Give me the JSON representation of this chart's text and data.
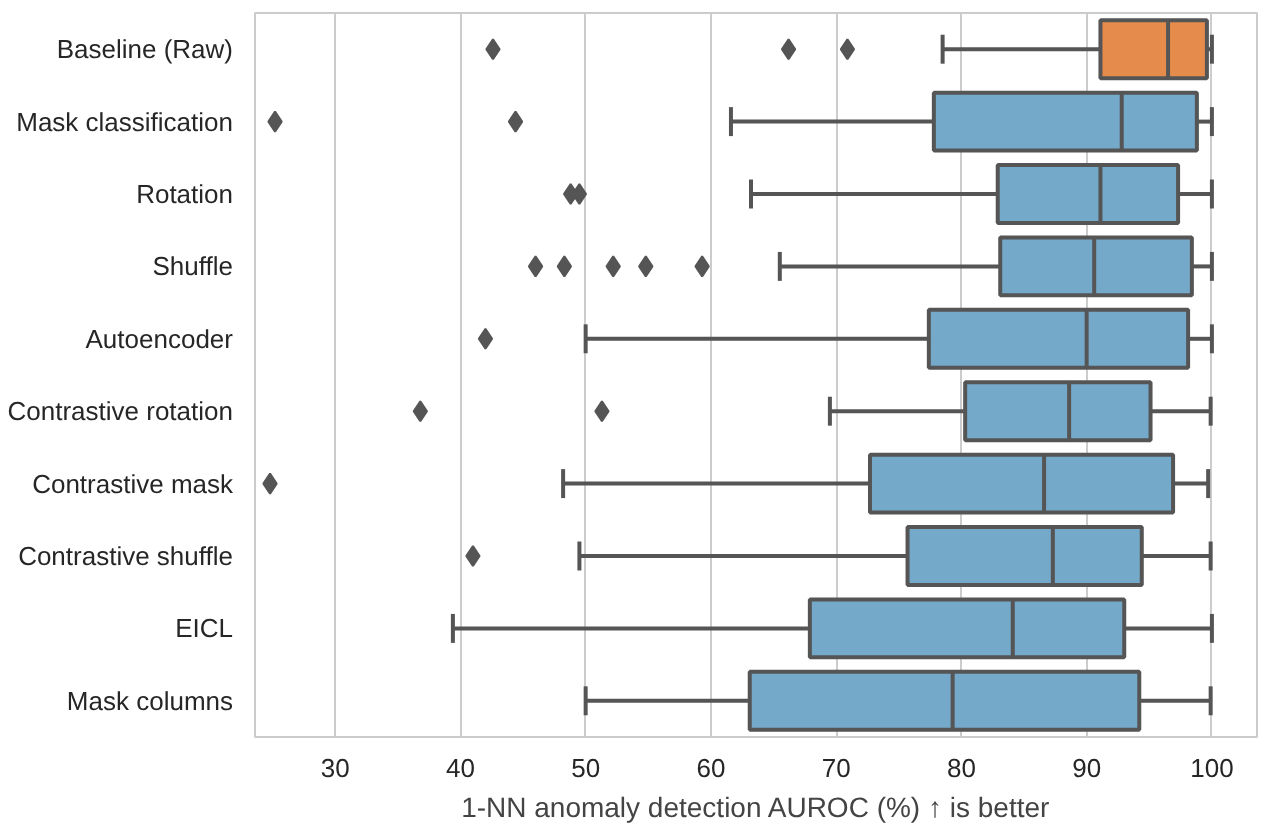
{
  "chart_data": {
    "type": "box",
    "orientation": "horizontal",
    "xlabel": "1-NN anomaly detection AUROC (%) ↑ is better",
    "categories": [
      "Baseline (Raw)",
      "Mask classification",
      "Rotation",
      "Shuffle",
      "Autoencoder",
      "Contrastive rotation",
      "Contrastive mask",
      "Contrastive shuffle",
      "EICL",
      "Mask columns"
    ],
    "colors": [
      "#e58c4c",
      "#75a9c9",
      "#75a9c9",
      "#75a9c9",
      "#75a9c9",
      "#75a9c9",
      "#75a9c9",
      "#75a9c9",
      "#75a9c9",
      "#75a9c9"
    ],
    "boxes": [
      {
        "low": 78.5,
        "q1": 91.1,
        "median": 96.5,
        "q3": 99.6,
        "high": 100.0,
        "outliers": [
          42.6,
          66.2,
          70.9
        ]
      },
      {
        "low": 61.6,
        "q1": 77.8,
        "median": 92.8,
        "q3": 98.8,
        "high": 100.0,
        "outliers": [
          25.2,
          44.4
        ]
      },
      {
        "low": 63.2,
        "q1": 82.9,
        "median": 91.1,
        "q3": 97.3,
        "high": 100.0,
        "outliers": [
          48.8,
          49.5
        ]
      },
      {
        "low": 65.5,
        "q1": 83.1,
        "median": 90.6,
        "q3": 98.4,
        "high": 100.0,
        "outliers": [
          46.0,
          48.3,
          52.2,
          54.8,
          59.3
        ]
      },
      {
        "low": 50.0,
        "q1": 77.4,
        "median": 90.0,
        "q3": 98.1,
        "high": 100.0,
        "outliers": [
          42.0
        ]
      },
      {
        "low": 69.5,
        "q1": 80.3,
        "median": 88.6,
        "q3": 95.1,
        "high": 99.9,
        "outliers": [
          36.8,
          51.3
        ]
      },
      {
        "low": 48.2,
        "q1": 72.7,
        "median": 86.6,
        "q3": 96.9,
        "high": 99.7,
        "outliers": [
          24.8
        ]
      },
      {
        "low": 49.5,
        "q1": 75.7,
        "median": 87.3,
        "q3": 94.4,
        "high": 99.9,
        "outliers": [
          41.0
        ]
      },
      {
        "low": 39.4,
        "q1": 67.9,
        "median": 84.1,
        "q3": 93.0,
        "high": 100.0
      },
      {
        "low": 50.0,
        "q1": 63.1,
        "median": 79.3,
        "q3": 94.2,
        "high": 99.9
      }
    ],
    "xlim": [
      23.6,
      103.6
    ],
    "xticks": [
      30,
      40,
      50,
      60,
      70,
      80,
      90,
      100
    ],
    "grid": "x",
    "marker": "diamond"
  }
}
